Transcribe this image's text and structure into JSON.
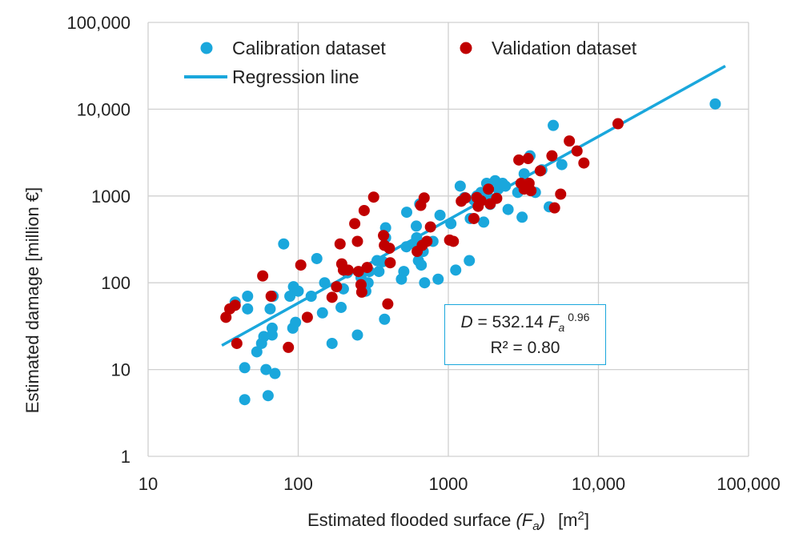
{
  "chart_data": {
    "type": "scatter",
    "xlabel": "Estimated flooded surface",
    "xlabel_symbol": "(F",
    "xlabel_sub": "a",
    "xlabel_close": ")",
    "xlabel_unit": "[m",
    "xlabel_unit_exp": "2",
    "xlabel_unit_close": "]",
    "ylabel": "Estimated damage [million €]",
    "x_scale": "log",
    "y_scale": "log",
    "xlim": [
      10,
      100000
    ],
    "ylim": [
      1,
      100000
    ],
    "x_ticks": [
      10,
      100,
      1000,
      10000,
      100000
    ],
    "x_tick_labels": [
      "10",
      "100",
      "1000",
      "10,000",
      "100,000"
    ],
    "y_ticks": [
      1,
      10,
      100,
      1000,
      10000,
      100000
    ],
    "y_tick_labels": [
      "1",
      "10",
      "100",
      "1000",
      "10,000",
      "100,000"
    ],
    "grid": true,
    "legend_position": "top-left",
    "series": [
      {
        "name": "Calibration dataset",
        "color": "#1aa7dc",
        "points": [
          [
            38,
            60
          ],
          [
            44,
            10.5
          ],
          [
            44,
            4.5
          ],
          [
            46,
            70
          ],
          [
            46,
            50
          ],
          [
            53,
            16
          ],
          [
            57,
            20
          ],
          [
            59,
            24
          ],
          [
            61,
            10
          ],
          [
            63,
            5
          ],
          [
            65,
            50
          ],
          [
            67,
            30
          ],
          [
            67,
            25
          ],
          [
            68,
            70
          ],
          [
            70,
            9
          ],
          [
            80,
            280
          ],
          [
            88,
            70
          ],
          [
            92,
            30
          ],
          [
            93,
            90
          ],
          [
            96,
            35
          ],
          [
            100,
            80
          ],
          [
            122,
            70
          ],
          [
            133,
            190
          ],
          [
            145,
            45
          ],
          [
            150,
            100
          ],
          [
            168,
            20
          ],
          [
            193,
            52
          ],
          [
            200,
            85
          ],
          [
            212,
            130
          ],
          [
            248,
            25
          ],
          [
            262,
            115
          ],
          [
            282,
            80
          ],
          [
            292,
            100
          ],
          [
            298,
            135
          ],
          [
            335,
            180
          ],
          [
            345,
            135
          ],
          [
            366,
            175
          ],
          [
            376,
            38
          ],
          [
            382,
            430
          ],
          [
            382,
            330
          ],
          [
            487,
            110
          ],
          [
            505,
            135
          ],
          [
            525,
            260
          ],
          [
            528,
            650
          ],
          [
            590,
            280
          ],
          [
            612,
            450
          ],
          [
            615,
            330
          ],
          [
            632,
            180
          ],
          [
            645,
            810
          ],
          [
            660,
            160
          ],
          [
            680,
            230
          ],
          [
            695,
            100
          ],
          [
            790,
            300
          ],
          [
            855,
            110
          ],
          [
            880,
            600
          ],
          [
            1040,
            480
          ],
          [
            1120,
            140
          ],
          [
            1200,
            1300
          ],
          [
            1280,
            960
          ],
          [
            1380,
            180
          ],
          [
            1400,
            550
          ],
          [
            1480,
            900
          ],
          [
            1550,
            1000
          ],
          [
            1650,
            1100
          ],
          [
            1720,
            500
          ],
          [
            1800,
            1400
          ],
          [
            1820,
            1000
          ],
          [
            1900,
            800
          ],
          [
            2050,
            1500
          ],
          [
            2150,
            1200
          ],
          [
            2300,
            1400
          ],
          [
            2400,
            1300
          ],
          [
            2500,
            700
          ],
          [
            2900,
            1100
          ],
          [
            3100,
            570
          ],
          [
            3200,
            1800
          ],
          [
            3500,
            2900
          ],
          [
            3800,
            1100
          ],
          [
            4200,
            2000
          ],
          [
            4700,
            750
          ],
          [
            5000,
            6500
          ],
          [
            5700,
            2300
          ],
          [
            60000,
            11500
          ]
        ]
      },
      {
        "name": "Validation dataset",
        "color": "#c00000",
        "points": [
          [
            33,
            40
          ],
          [
            35,
            50
          ],
          [
            38,
            55
          ],
          [
            39,
            20
          ],
          [
            58,
            120
          ],
          [
            66,
            70
          ],
          [
            86,
            18
          ],
          [
            104,
            160
          ],
          [
            115,
            40
          ],
          [
            168,
            68
          ],
          [
            180,
            90
          ],
          [
            190,
            280
          ],
          [
            195,
            165
          ],
          [
            200,
            140
          ],
          [
            215,
            140
          ],
          [
            238,
            480
          ],
          [
            248,
            300
          ],
          [
            252,
            135
          ],
          [
            262,
            95
          ],
          [
            265,
            78
          ],
          [
            275,
            680
          ],
          [
            288,
            150
          ],
          [
            318,
            970
          ],
          [
            370,
            350
          ],
          [
            375,
            270
          ],
          [
            395,
            57
          ],
          [
            405,
            250
          ],
          [
            410,
            170
          ],
          [
            620,
            230
          ],
          [
            655,
            780
          ],
          [
            670,
            270
          ],
          [
            690,
            950
          ],
          [
            720,
            300
          ],
          [
            760,
            440
          ],
          [
            1020,
            310
          ],
          [
            1080,
            300
          ],
          [
            1220,
            870
          ],
          [
            1300,
            950
          ],
          [
            1480,
            550
          ],
          [
            1550,
            960
          ],
          [
            1580,
            760
          ],
          [
            1650,
            880
          ],
          [
            1850,
            1200
          ],
          [
            1900,
            810
          ],
          [
            2100,
            940
          ],
          [
            2950,
            2600
          ],
          [
            3050,
            1400
          ],
          [
            3200,
            1200
          ],
          [
            3400,
            2700
          ],
          [
            3450,
            1400
          ],
          [
            3550,
            1150
          ],
          [
            4100,
            1950
          ],
          [
            4900,
            2900
          ],
          [
            5100,
            730
          ],
          [
            5600,
            1050
          ],
          [
            6400,
            4300
          ],
          [
            7200,
            3300
          ],
          [
            8000,
            2400
          ],
          [
            13500,
            6800
          ]
        ]
      }
    ],
    "regression": {
      "name": "Regression line",
      "color": "#1aa7dc",
      "coefficient": 532.14,
      "exponent": 0.96,
      "x_range": [
        31,
        70000
      ]
    },
    "annotation": {
      "eq_lhs": "D",
      "eq_mid": " = 532.14 ",
      "eq_var": "F",
      "eq_sub": "a",
      "eq_exp": " 0.96",
      "r2": "R² = 0.80"
    }
  }
}
